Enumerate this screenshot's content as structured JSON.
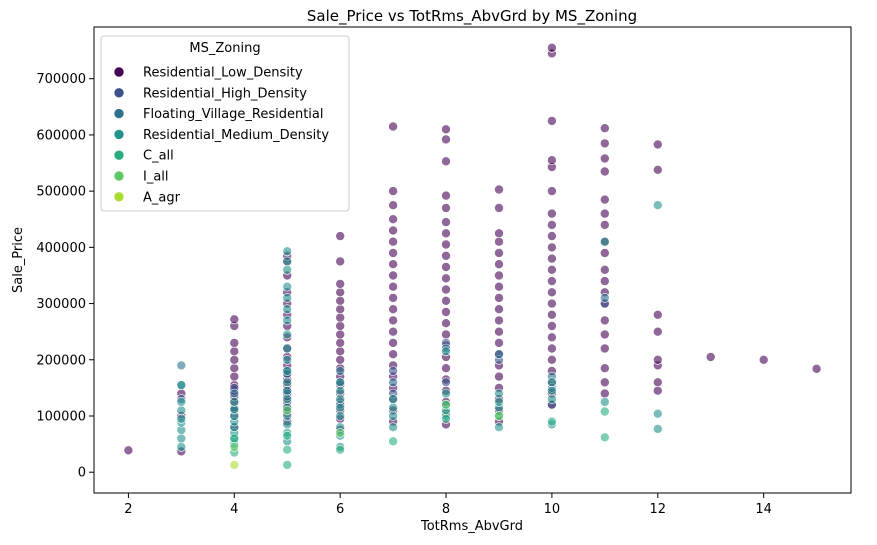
{
  "chart_data": {
    "type": "scatter",
    "title": "Sale_Price vs TotRms_AbvGrd by MS_Zoning",
    "xlabel": "TotRms_AbvGrd",
    "ylabel": "Sale_Price",
    "xlim": [
      1.35,
      15.65
    ],
    "ylim": [
      -37000,
      792000
    ],
    "xticks": [
      2,
      4,
      6,
      8,
      10,
      12,
      14
    ],
    "yticks": [
      0,
      100000,
      200000,
      300000,
      400000,
      500000,
      600000,
      700000
    ],
    "grid": false,
    "legend": {
      "title": "MS_Zoning",
      "placement": "top-left"
    },
    "series": [
      {
        "name": "Residential_Low_Density",
        "color": "#440154",
        "points": [
          [
            2,
            39000
          ],
          [
            3,
            37000
          ],
          [
            3,
            100000
          ],
          [
            3,
            140000
          ],
          [
            4,
            80000
          ],
          [
            4,
            100000
          ],
          [
            4,
            115000
          ],
          [
            4,
            125000
          ],
          [
            4,
            135000
          ],
          [
            4,
            145000
          ],
          [
            4,
            155000
          ],
          [
            4,
            170000
          ],
          [
            4,
            185000
          ],
          [
            4,
            200000
          ],
          [
            4,
            215000
          ],
          [
            4,
            230000
          ],
          [
            4,
            260000
          ],
          [
            4,
            272000
          ],
          [
            5,
            90000
          ],
          [
            5,
            105000
          ],
          [
            5,
            115000
          ],
          [
            5,
            125000
          ],
          [
            5,
            135000
          ],
          [
            5,
            145000
          ],
          [
            5,
            155000
          ],
          [
            5,
            165000
          ],
          [
            5,
            175000
          ],
          [
            5,
            190000
          ],
          [
            5,
            205000
          ],
          [
            5,
            220000
          ],
          [
            5,
            240000
          ],
          [
            5,
            260000
          ],
          [
            5,
            280000
          ],
          [
            5,
            300000
          ],
          [
            5,
            320000
          ],
          [
            5,
            350000
          ],
          [
            5,
            375000
          ],
          [
            5,
            385000
          ],
          [
            6,
            75000
          ],
          [
            6,
            95000
          ],
          [
            6,
            110000
          ],
          [
            6,
            125000
          ],
          [
            6,
            140000
          ],
          [
            6,
            155000
          ],
          [
            6,
            170000
          ],
          [
            6,
            185000
          ],
          [
            6,
            200000
          ],
          [
            6,
            215000
          ],
          [
            6,
            230000
          ],
          [
            6,
            245000
          ],
          [
            6,
            260000
          ],
          [
            6,
            275000
          ],
          [
            6,
            290000
          ],
          [
            6,
            305000
          ],
          [
            6,
            320000
          ],
          [
            6,
            335000
          ],
          [
            6,
            375000
          ],
          [
            6,
            420000
          ],
          [
            7,
            90000
          ],
          [
            7,
            110000
          ],
          [
            7,
            130000
          ],
          [
            7,
            150000
          ],
          [
            7,
            170000
          ],
          [
            7,
            190000
          ],
          [
            7,
            210000
          ],
          [
            7,
            230000
          ],
          [
            7,
            250000
          ],
          [
            7,
            270000
          ],
          [
            7,
            290000
          ],
          [
            7,
            310000
          ],
          [
            7,
            330000
          ],
          [
            7,
            350000
          ],
          [
            7,
            370000
          ],
          [
            7,
            390000
          ],
          [
            7,
            410000
          ],
          [
            7,
            430000
          ],
          [
            7,
            450000
          ],
          [
            7,
            475000
          ],
          [
            7,
            500000
          ],
          [
            7,
            615000
          ],
          [
            8,
            85000
          ],
          [
            8,
            105000
          ],
          [
            8,
            125000
          ],
          [
            8,
            145000
          ],
          [
            8,
            165000
          ],
          [
            8,
            185000
          ],
          [
            8,
            205000
          ],
          [
            8,
            225000
          ],
          [
            8,
            245000
          ],
          [
            8,
            265000
          ],
          [
            8,
            285000
          ],
          [
            8,
            305000
          ],
          [
            8,
            325000
          ],
          [
            8,
            345000
          ],
          [
            8,
            365000
          ],
          [
            8,
            385000
          ],
          [
            8,
            405000
          ],
          [
            8,
            425000
          ],
          [
            8,
            445000
          ],
          [
            8,
            470000
          ],
          [
            8,
            492000
          ],
          [
            8,
            553000
          ],
          [
            8,
            592000
          ],
          [
            8,
            610000
          ],
          [
            9,
            90000
          ],
          [
            9,
            110000
          ],
          [
            9,
            130000
          ],
          [
            9,
            150000
          ],
          [
            9,
            170000
          ],
          [
            9,
            190000
          ],
          [
            9,
            210000
          ],
          [
            9,
            230000
          ],
          [
            9,
            250000
          ],
          [
            9,
            270000
          ],
          [
            9,
            290000
          ],
          [
            9,
            310000
          ],
          [
            9,
            330000
          ],
          [
            9,
            350000
          ],
          [
            9,
            370000
          ],
          [
            9,
            390000
          ],
          [
            9,
            410000
          ],
          [
            9,
            425000
          ],
          [
            9,
            470000
          ],
          [
            9,
            503000
          ],
          [
            10,
            120000
          ],
          [
            10,
            140000
          ],
          [
            10,
            160000
          ],
          [
            10,
            180000
          ],
          [
            10,
            200000
          ],
          [
            10,
            220000
          ],
          [
            10,
            240000
          ],
          [
            10,
            260000
          ],
          [
            10,
            280000
          ],
          [
            10,
            300000
          ],
          [
            10,
            320000
          ],
          [
            10,
            340000
          ],
          [
            10,
            360000
          ],
          [
            10,
            380000
          ],
          [
            10,
            400000
          ],
          [
            10,
            420000
          ],
          [
            10,
            440000
          ],
          [
            10,
            460000
          ],
          [
            10,
            500000
          ],
          [
            10,
            543000
          ],
          [
            10,
            555000
          ],
          [
            10,
            625000
          ],
          [
            10,
            745000
          ],
          [
            10,
            755000
          ],
          [
            11,
            140000
          ],
          [
            11,
            160000
          ],
          [
            11,
            185000
          ],
          [
            11,
            220000
          ],
          [
            11,
            245000
          ],
          [
            11,
            270000
          ],
          [
            11,
            300000
          ],
          [
            11,
            320000
          ],
          [
            11,
            340000
          ],
          [
            11,
            360000
          ],
          [
            11,
            390000
          ],
          [
            11,
            410000
          ],
          [
            11,
            440000
          ],
          [
            11,
            460000
          ],
          [
            11,
            485000
          ],
          [
            11,
            535000
          ],
          [
            11,
            558000
          ],
          [
            11,
            585000
          ],
          [
            11,
            612000
          ],
          [
            12,
            145000
          ],
          [
            12,
            160000
          ],
          [
            12,
            190000
          ],
          [
            12,
            200000
          ],
          [
            12,
            250000
          ],
          [
            12,
            280000
          ],
          [
            12,
            538000
          ],
          [
            12,
            583000
          ],
          [
            13,
            205000
          ],
          [
            14,
            200000
          ],
          [
            15,
            184000
          ]
        ]
      },
      {
        "name": "Residential_High_Density",
        "color": "#3b528b",
        "points": [
          [
            3,
            130000
          ],
          [
            4,
            110000
          ],
          [
            4,
            150000
          ],
          [
            5,
            140000
          ],
          [
            5,
            180000
          ],
          [
            6,
            120000
          ],
          [
            6,
            160000
          ],
          [
            7,
            140000
          ],
          [
            7,
            180000
          ],
          [
            8,
            160000
          ],
          [
            8,
            230000
          ],
          [
            9,
            200000
          ],
          [
            10,
            120000
          ],
          [
            10,
            150000
          ],
          [
            11,
            300000
          ]
        ]
      },
      {
        "name": "Floating_Village_Residential",
        "color": "#2c728e",
        "points": [
          [
            3,
            190000
          ],
          [
            3,
            155000
          ],
          [
            4,
            140000
          ],
          [
            5,
            175000
          ],
          [
            6,
            180000
          ],
          [
            7,
            160000
          ],
          [
            8,
            220000
          ],
          [
            9,
            210000
          ],
          [
            10,
            170000
          ],
          [
            11,
            310000
          ]
        ]
      },
      {
        "name": "Residential_Medium_Density",
        "color": "#21918c",
        "points": [
          [
            3,
            45000
          ],
          [
            3,
            60000
          ],
          [
            3,
            75000
          ],
          [
            3,
            88000
          ],
          [
            3,
            95000
          ],
          [
            3,
            110000
          ],
          [
            3,
            125000
          ],
          [
            3,
            155000
          ],
          [
            4,
            50000
          ],
          [
            4,
            60000
          ],
          [
            4,
            70000
          ],
          [
            4,
            80000
          ],
          [
            4,
            90000
          ],
          [
            4,
            100000
          ],
          [
            4,
            112000
          ],
          [
            4,
            125000
          ],
          [
            5,
            55000
          ],
          [
            5,
            70000
          ],
          [
            5,
            85000
          ],
          [
            5,
            100000
          ],
          [
            5,
            115000
          ],
          [
            5,
            130000
          ],
          [
            5,
            145000
          ],
          [
            5,
            160000
          ],
          [
            5,
            180000
          ],
          [
            5,
            200000
          ],
          [
            5,
            220000
          ],
          [
            5,
            245000
          ],
          [
            5,
            270000
          ],
          [
            5,
            290000
          ],
          [
            5,
            310000
          ],
          [
            5,
            330000
          ],
          [
            5,
            360000
          ],
          [
            5,
            375000
          ],
          [
            5,
            393000
          ],
          [
            6,
            45000
          ],
          [
            6,
            65000
          ],
          [
            6,
            80000
          ],
          [
            6,
            100000
          ],
          [
            6,
            115000
          ],
          [
            6,
            130000
          ],
          [
            6,
            145000
          ],
          [
            6,
            160000
          ],
          [
            7,
            80000
          ],
          [
            7,
            100000
          ],
          [
            7,
            115000
          ],
          [
            7,
            130000
          ],
          [
            8,
            100000
          ],
          [
            8,
            120000
          ],
          [
            8,
            140000
          ],
          [
            8,
            215000
          ],
          [
            9,
            80000
          ],
          [
            9,
            115000
          ],
          [
            9,
            125000
          ],
          [
            9,
            140000
          ],
          [
            10,
            85000
          ],
          [
            10,
            130000
          ],
          [
            10,
            145000
          ],
          [
            10,
            160000
          ],
          [
            11,
            410000
          ],
          [
            11,
            125000
          ],
          [
            12,
            475000
          ],
          [
            12,
            104000
          ],
          [
            12,
            77000
          ]
        ]
      },
      {
        "name": "C_all",
        "color": "#27ad81",
        "points": [
          [
            4,
            35000
          ],
          [
            4,
            60000
          ],
          [
            5,
            13000
          ],
          [
            5,
            40000
          ],
          [
            5,
            65000
          ],
          [
            6,
            40000
          ],
          [
            7,
            55000
          ],
          [
            8,
            95000
          ],
          [
            8,
            110000
          ],
          [
            9,
            100000
          ],
          [
            10,
            90000
          ],
          [
            11,
            62000
          ],
          [
            11,
            108000
          ]
        ]
      },
      {
        "name": "I_all",
        "color": "#5ec962",
        "points": [
          [
            4,
            45000
          ],
          [
            5,
            110000
          ],
          [
            6,
            70000
          ],
          [
            8,
            120000
          ],
          [
            9,
            100000
          ]
        ]
      },
      {
        "name": "A_agr",
        "color": "#aadc32",
        "points": [
          [
            4,
            13000
          ]
        ]
      }
    ]
  }
}
